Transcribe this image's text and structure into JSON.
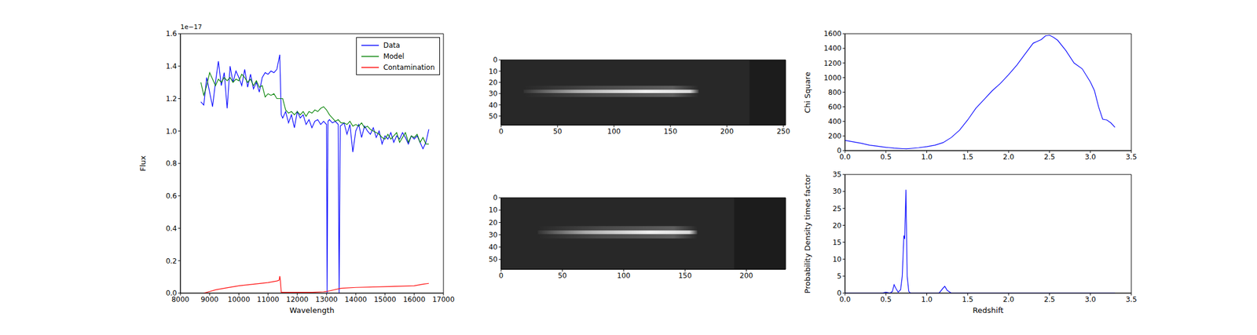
{
  "chart_data": [
    {
      "type": "line",
      "x_label": "Wavelength",
      "y_label": "Flux",
      "y_offset_label": "1e−17",
      "xlim": [
        8000,
        17000
      ],
      "xticks": [
        8000,
        9000,
        10000,
        11000,
        12000,
        13000,
        14000,
        15000,
        16000,
        17000
      ],
      "ylim": [
        0,
        1.6
      ],
      "yticks": [
        {
          "value": 0,
          "label": "0.0"
        },
        {
          "value": 0.2,
          "label": "0.2"
        },
        {
          "value": 0.4,
          "label": "0.4"
        },
        {
          "value": 0.6,
          "label": "0.6"
        },
        {
          "value": 0.8,
          "label": "0.8"
        },
        {
          "value": 1,
          "label": "1.0"
        },
        {
          "value": 1.2,
          "label": "1.2"
        },
        {
          "value": 1.4,
          "label": "1.4"
        },
        {
          "value": 1.6,
          "label": "1.6"
        }
      ],
      "legend": "upper right",
      "series": [
        {
          "name": "Data",
          "color": "#0000ff",
          "x": [
            8700,
            8800,
            8900,
            9000,
            9100,
            9200,
            9300,
            9400,
            9500,
            9600,
            9700,
            9800,
            9900,
            10000,
            10100,
            10200,
            10300,
            10400,
            10500,
            10600,
            10700,
            10800,
            10900,
            11000,
            11100,
            11200,
            11300,
            11400,
            11450,
            11500,
            11600,
            11700,
            11800,
            11900,
            12000,
            12100,
            12200,
            12300,
            12400,
            12500,
            12600,
            12700,
            12800,
            12900,
            13000,
            13020,
            13050,
            13100,
            13200,
            13300,
            13400,
            13430,
            13470,
            13600,
            13700,
            13800,
            13900,
            14000,
            14100,
            14200,
            14300,
            14400,
            14500,
            14600,
            14700,
            14800,
            14900,
            15000,
            15100,
            15200,
            15300,
            15400,
            15500,
            15600,
            15700,
            15800,
            15900,
            16000,
            16100,
            16200,
            16300,
            16400,
            16500
          ],
          "values": [
            1.18,
            1.16,
            1.33,
            1.24,
            1.15,
            1.3,
            1.43,
            1.28,
            1.36,
            1.14,
            1.4,
            1.3,
            1.37,
            1.33,
            1.28,
            1.38,
            1.27,
            1.35,
            1.26,
            1.3,
            1.24,
            1.33,
            1.36,
            1.35,
            1.37,
            1.36,
            1.38,
            1.47,
            1.1,
            1.08,
            1.12,
            1.05,
            1.1,
            1.02,
            1.12,
            1.08,
            1.1,
            1.04,
            1.07,
            1.02,
            1.06,
            1.07,
            1.04,
            1.06,
            1.04,
            0,
            1.06,
            1.07,
            1.05,
            1.06,
            1.04,
            0,
            1.03,
            1.05,
            0.98,
            1.04,
            0.87,
            1.0,
            1.04,
            0.96,
            1.03,
            1.0,
            0.98,
            1.02,
            0.96,
            1.0,
            0.92,
            0.97,
            0.95,
            0.99,
            0.93,
            0.97,
            0.95,
            0.99,
            0.96,
            0.92,
            0.97,
            0.95,
            0.97,
            0.93,
            0.89,
            0.93,
            1.01
          ]
        },
        {
          "name": "Model",
          "color": "#008000",
          "x": [
            8700,
            8800,
            8900,
            9000,
            9100,
            9200,
            9300,
            9400,
            9500,
            9600,
            9700,
            9800,
            9900,
            10000,
            10100,
            10200,
            10300,
            10400,
            10500,
            10600,
            10700,
            10800,
            10900,
            11000,
            11100,
            11200,
            11300,
            11400,
            11500,
            11600,
            11700,
            11800,
            11900,
            12000,
            12100,
            12200,
            12300,
            12400,
            12500,
            12600,
            12700,
            12800,
            12900,
            13000,
            13100,
            13200,
            13300,
            13400,
            13500,
            13600,
            13700,
            13800,
            13900,
            14000,
            14100,
            14200,
            14300,
            14400,
            14500,
            14600,
            14700,
            14800,
            14900,
            15000,
            15100,
            15200,
            15300,
            15400,
            15500,
            15600,
            15700,
            15800,
            15900,
            16000,
            16100,
            16200,
            16300,
            16400,
            16500
          ],
          "values": [
            1.3,
            1.22,
            1.28,
            1.36,
            1.32,
            1.28,
            1.32,
            1.3,
            1.33,
            1.31,
            1.33,
            1.3,
            1.32,
            1.31,
            1.35,
            1.33,
            1.3,
            1.32,
            1.28,
            1.31,
            1.27,
            1.28,
            1.21,
            1.23,
            1.22,
            1.23,
            1.2,
            1.2,
            1.2,
            1.13,
            1.11,
            1.12,
            1.1,
            1.12,
            1.1,
            1.12,
            1.09,
            1.12,
            1.11,
            1.13,
            1.12,
            1.14,
            1.15,
            1.13,
            1.1,
            1.08,
            1.06,
            1.07,
            1.05,
            1.05,
            1.04,
            1.06,
            1.03,
            1.04,
            1.03,
            1.05,
            1.02,
            1.03,
            1.01,
            1.0,
            0.99,
            0.98,
            0.96,
            0.95,
            0.98,
            0.95,
            0.97,
            0.99,
            0.93,
            0.96,
            0.99,
            0.93,
            0.97,
            0.96,
            0.98,
            0.93,
            0.96,
            0.92,
            0.92
          ]
        },
        {
          "name": "Contamination",
          "color": "#ff0000",
          "x": [
            8800,
            9000,
            9200,
            9500,
            10000,
            10500,
            11000,
            11300,
            11380,
            11400,
            11420,
            11450,
            12000,
            12500,
            12900,
            13000,
            13500,
            14000,
            15000,
            16000,
            16300,
            16500
          ],
          "values": [
            0,
            0.01,
            0.02,
            0.03,
            0.045,
            0.055,
            0.065,
            0.075,
            0.08,
            0.105,
            0.08,
            0.005,
            0.005,
            0.005,
            0.008,
            0.01,
            0.03,
            0.035,
            0.04,
            0.045,
            0.055,
            0.06
          ]
        }
      ]
    },
    {
      "type": "image",
      "xlim": [
        0,
        252
      ],
      "xticks": [
        0,
        50,
        100,
        150,
        200,
        250
      ],
      "ylim": [
        58,
        0
      ],
      "yticks": [
        0,
        10,
        20,
        30,
        40,
        50
      ],
      "data_xlim": [
        0,
        220
      ],
      "trace_x": [
        20,
        175
      ],
      "trace_y": 28
    },
    {
      "type": "image",
      "xlim": [
        0,
        232
      ],
      "xticks": [
        0,
        50,
        100,
        150,
        200
      ],
      "ylim": [
        58,
        0
      ],
      "yticks": [
        0,
        10,
        20,
        30,
        40,
        50
      ],
      "data_xlim": [
        0,
        190
      ],
      "trace_x": [
        30,
        160
      ],
      "trace_y": 28
    },
    {
      "type": "line",
      "y_label": "Chi Square",
      "xlim": [
        0,
        3.5
      ],
      "xticks": [
        {
          "value": 0,
          "label": "0.0"
        },
        {
          "value": 0.5,
          "label": "0.5"
        },
        {
          "value": 1,
          "label": "1.0"
        },
        {
          "value": 1.5,
          "label": "1.5"
        },
        {
          "value": 2,
          "label": "2.0"
        },
        {
          "value": 2.5,
          "label": "2.5"
        },
        {
          "value": 3,
          "label": "3.0"
        },
        {
          "value": 3.5,
          "label": "3.5"
        }
      ],
      "ylim": [
        0,
        1600
      ],
      "yticks": [
        0,
        200,
        400,
        600,
        800,
        1000,
        1200,
        1400,
        1600
      ],
      "series": [
        {
          "color": "#0000ff",
          "x": [
            0,
            0.1,
            0.2,
            0.3,
            0.4,
            0.5,
            0.6,
            0.7,
            0.75,
            0.8,
            0.9,
            1.0,
            1.1,
            1.2,
            1.3,
            1.4,
            1.5,
            1.6,
            1.7,
            1.8,
            1.9,
            2.0,
            2.1,
            2.2,
            2.3,
            2.4,
            2.45,
            2.5,
            2.55,
            2.6,
            2.7,
            2.8,
            2.9,
            3.0,
            3.05,
            3.1,
            3.15,
            3.2,
            3.25,
            3.3
          ],
          "values": [
            140,
            120,
            100,
            75,
            60,
            45,
            35,
            28,
            25,
            30,
            40,
            55,
            75,
            110,
            180,
            280,
            420,
            580,
            700,
            820,
            920,
            1040,
            1170,
            1320,
            1470,
            1520,
            1570,
            1580,
            1550,
            1510,
            1370,
            1200,
            1120,
            940,
            820,
            600,
            430,
            420,
            380,
            320
          ]
        }
      ]
    },
    {
      "type": "line",
      "x_label": "Redshift",
      "y_label": "Probability Density times factor",
      "xlim": [
        0,
        3.5
      ],
      "xticks": [
        {
          "value": 0,
          "label": "0.0"
        },
        {
          "value": 0.5,
          "label": "0.5"
        },
        {
          "value": 1,
          "label": "1.0"
        },
        {
          "value": 1.5,
          "label": "1.5"
        },
        {
          "value": 2,
          "label": "2.0"
        },
        {
          "value": 2.5,
          "label": "2.5"
        },
        {
          "value": 3,
          "label": "3.0"
        },
        {
          "value": 3.5,
          "label": "3.5"
        }
      ],
      "ylim": [
        0,
        35
      ],
      "yticks": [
        0,
        5,
        10,
        15,
        20,
        25,
        30,
        35
      ],
      "series": [
        {
          "color": "#0000ff",
          "x": [
            0,
            0.45,
            0.5,
            0.55,
            0.58,
            0.6,
            0.62,
            0.65,
            0.68,
            0.7,
            0.72,
            0.73,
            0.745,
            0.76,
            0.78,
            0.8,
            1.15,
            1.2,
            1.22,
            1.25,
            1.3,
            3.3
          ],
          "values": [
            0,
            0,
            0.3,
            0,
            0.5,
            2.5,
            1.5,
            0.3,
            1,
            5,
            17,
            16,
            30.5,
            5,
            0.5,
            0,
            0,
            1.5,
            2,
            0.8,
            0,
            0
          ]
        }
      ]
    }
  ]
}
